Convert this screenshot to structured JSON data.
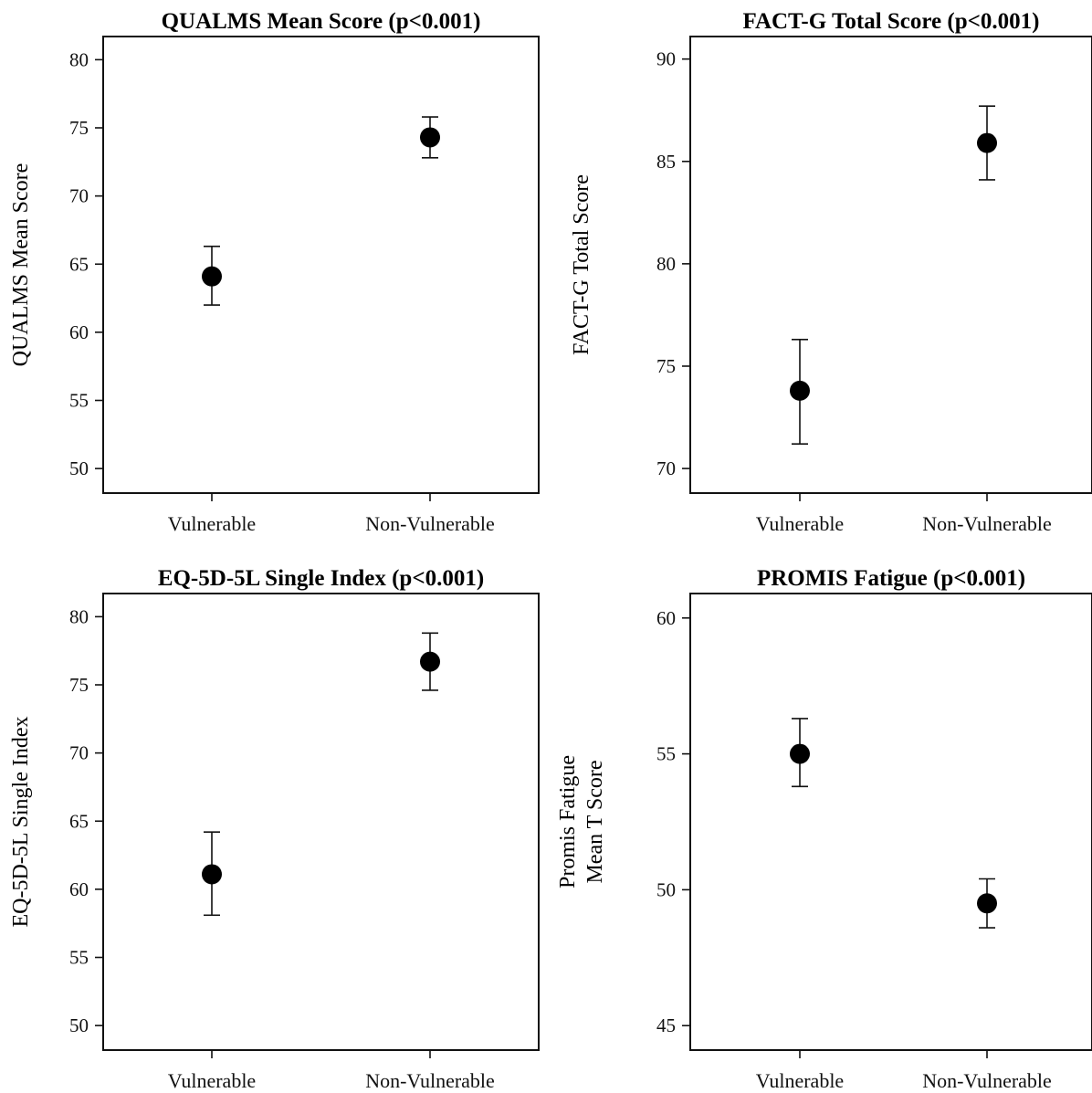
{
  "chart_data": [
    {
      "type": "scatter",
      "title": "QUALMS Mean Score (p<0.001)",
      "ylabel": [
        "QUALMS Mean Score"
      ],
      "categories": [
        "Vulnerable",
        "Non-Vulnerable"
      ],
      "values": [
        64.1,
        74.3
      ],
      "error_low": [
        62.0,
        72.8
      ],
      "error_high": [
        66.3,
        75.8
      ],
      "yticks": [
        50,
        55,
        60,
        65,
        70,
        75,
        80
      ],
      "ylim": [
        48.2,
        81.7
      ],
      "grid": false,
      "colors": {
        "marker": "#000000"
      }
    },
    {
      "type": "scatter",
      "title": "FACT-G Total Score (p<0.001)",
      "ylabel": [
        "FACT-G Total Score"
      ],
      "categories": [
        "Vulnerable",
        "Non-Vulnerable"
      ],
      "values": [
        73.8,
        85.9
      ],
      "error_low": [
        71.2,
        84.1
      ],
      "error_high": [
        76.3,
        87.7
      ],
      "yticks": [
        70,
        75,
        80,
        85,
        90
      ],
      "ylim": [
        68.8,
        91.1
      ],
      "grid": false,
      "colors": {
        "marker": "#000000"
      }
    },
    {
      "type": "scatter",
      "title": "EQ-5D-5L Single Index (p<0.001)",
      "ylabel": [
        "EQ-5D-5L Single Index"
      ],
      "categories": [
        "Vulnerable",
        "Non-Vulnerable"
      ],
      "values": [
        61.1,
        76.7
      ],
      "error_low": [
        58.1,
        74.6
      ],
      "error_high": [
        64.2,
        78.8
      ],
      "yticks": [
        50,
        55,
        60,
        65,
        70,
        75,
        80
      ],
      "ylim": [
        48.2,
        81.7
      ],
      "grid": false,
      "colors": {
        "marker": "#000000"
      }
    },
    {
      "type": "scatter",
      "title": "PROMIS Fatigue (p<0.001)",
      "ylabel": [
        "Promis Fatigue",
        "Mean T Score"
      ],
      "categories": [
        "Vulnerable",
        "Non-Vulnerable"
      ],
      "values": [
        55.0,
        49.5
      ],
      "error_low": [
        53.8,
        48.6
      ],
      "error_high": [
        56.3,
        50.4
      ],
      "yticks": [
        45,
        50,
        55,
        60
      ],
      "ylim": [
        44.1,
        60.9
      ],
      "grid": false,
      "colors": {
        "marker": "#000000"
      }
    }
  ]
}
